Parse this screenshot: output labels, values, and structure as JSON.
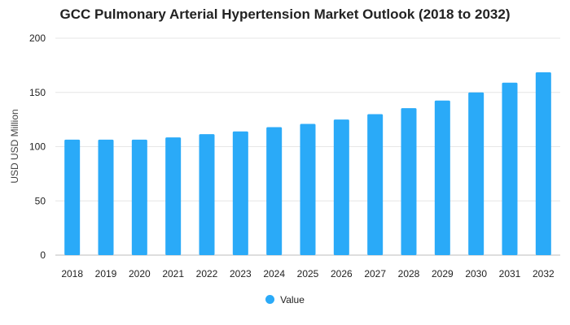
{
  "chart_data": {
    "type": "bar",
    "title": "GCC Pulmonary Arterial Hypertension Market Outlook (2018 to 2032)",
    "xlabel": "",
    "ylabel": "USD USD Million",
    "ylim": [
      0,
      200
    ],
    "yticks": [
      0,
      50,
      100,
      150,
      200
    ],
    "grid": true,
    "legend_position": "bottom",
    "categories": [
      "2018",
      "2019",
      "2020",
      "2021",
      "2022",
      "2023",
      "2024",
      "2025",
      "2026",
      "2027",
      "2028",
      "2029",
      "2030",
      "2031",
      "2032"
    ],
    "series": [
      {
        "name": "Value",
        "color": "#2aaaf8",
        "values": [
          106.5,
          106.5,
          106.5,
          108.5,
          111.5,
          114,
          118,
          121,
          125,
          130,
          135.5,
          142.5,
          150,
          159,
          168.5
        ]
      }
    ]
  }
}
